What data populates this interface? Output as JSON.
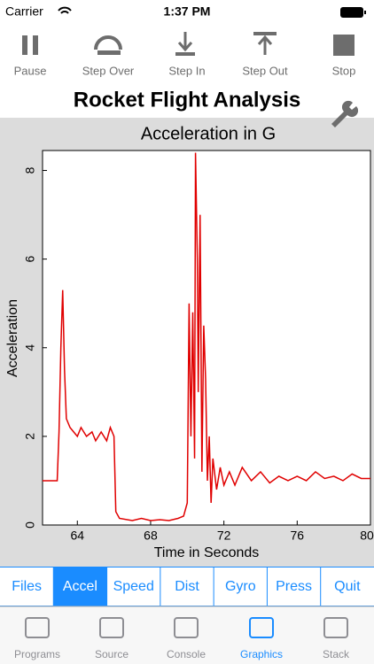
{
  "status_bar": {
    "carrier": "Carrier",
    "time": "1:37 PM"
  },
  "toolbar": [
    "Pause",
    "Step Over",
    "Step In",
    "Step Out",
    "Stop"
  ],
  "header": {
    "title": "Rocket Flight Analysis"
  },
  "chart_data": {
    "type": "line",
    "title": "Acceleration in G",
    "x_label": "Time in Seconds",
    "y_label": "Acceleration",
    "xlim": [
      62.1,
      80
    ],
    "ylim": [
      0,
      8.45
    ],
    "xticks": [
      64,
      68,
      72,
      76,
      80
    ],
    "yticks": [
      0,
      2,
      4,
      6,
      8
    ],
    "grid": false,
    "x": [
      62.1,
      62.9,
      63.0,
      63.1,
      63.2,
      63.3,
      63.4,
      63.6,
      63.8,
      64.0,
      64.2,
      64.5,
      64.8,
      65.0,
      65.3,
      65.6,
      65.8,
      66.0,
      66.1,
      66.3,
      67.0,
      67.5,
      68.0,
      68.5,
      69.0,
      69.5,
      69.8,
      70.0,
      70.1,
      70.2,
      70.3,
      70.4,
      70.45,
      70.55,
      70.6,
      70.7,
      70.8,
      70.9,
      71.0,
      71.1,
      71.2,
      71.3,
      71.4,
      71.6,
      71.8,
      72.0,
      72.3,
      72.6,
      73.0,
      73.5,
      74.0,
      74.5,
      75.0,
      75.5,
      76.0,
      76.5,
      77.0,
      77.5,
      78.0,
      78.5,
      79.0,
      79.5,
      80.0
    ],
    "series": [
      {
        "name": "Acceleration",
        "color": "#e00000",
        "values": [
          1.0,
          1.0,
          2.1,
          4.0,
          5.3,
          3.5,
          2.4,
          2.2,
          2.1,
          2.0,
          2.2,
          2.0,
          2.1,
          1.9,
          2.1,
          1.9,
          2.2,
          2.0,
          0.3,
          0.15,
          0.1,
          0.15,
          0.1,
          0.12,
          0.1,
          0.15,
          0.2,
          0.5,
          5.0,
          2.0,
          4.8,
          1.5,
          8.4,
          6.0,
          3.0,
          7.0,
          1.2,
          4.5,
          3.3,
          1.0,
          2.0,
          0.5,
          1.5,
          0.8,
          1.3,
          0.9,
          1.2,
          0.9,
          1.3,
          1.0,
          1.2,
          0.95,
          1.1,
          1.0,
          1.1,
          1.0,
          1.2,
          1.05,
          1.1,
          1.0,
          1.15,
          1.05,
          1.05
        ]
      }
    ]
  },
  "tabs": [
    "Files",
    "Accel",
    "Speed",
    "Dist",
    "Gyro",
    "Press",
    "Quit"
  ],
  "tab_bar": [
    "Programs",
    "Source",
    "Console",
    "Graphics",
    "Stack"
  ]
}
